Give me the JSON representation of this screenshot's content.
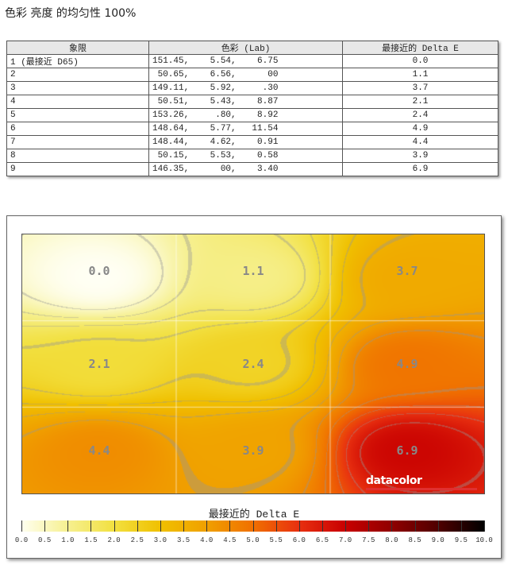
{
  "title": "色彩 亮度 的均匀性 100%",
  "table": {
    "headers": [
      "象限",
      "色彩 (Lab)",
      "最接近的 Delta E"
    ],
    "rows": [
      [
        "1 (最接近 D65)",
        "151.45,    5.54,    6.75",
        "0.0"
      ],
      [
        "2",
        " 50.65,    6.56,      00",
        "1.1"
      ],
      [
        "3",
        "149.11,    5.92,     .30",
        "3.7"
      ],
      [
        "4",
        " 50.51,    5.43,    8.87",
        "2.1"
      ],
      [
        "5",
        "153.26,     .80,    8.92",
        "2.4"
      ],
      [
        "6",
        "148.64,    5.77,   11.54",
        "4.9"
      ],
      [
        "7",
        "148.44,    4.62,    0.91",
        "4.4"
      ],
      [
        "8",
        " 50.15,    5.53,    0.58",
        "3.9"
      ],
      [
        "9",
        "146.35,      00,    3.40",
        "6.9"
      ]
    ]
  },
  "chart_data": {
    "type": "heatmap",
    "grid": [
      [
        0.0,
        1.1,
        3.7
      ],
      [
        2.1,
        2.4,
        4.9
      ],
      [
        4.4,
        3.9,
        6.9
      ]
    ],
    "labels": [
      "0.0",
      "1.1",
      "3.7",
      "2.1",
      "2.4",
      "4.9",
      "4.4",
      "3.9",
      "6.9"
    ],
    "colorbar_title": "最接近的 Delta E",
    "colorbar_range": [
      0,
      10
    ],
    "colorbar_ticks": [
      "0.0",
      "0.5",
      "1.0",
      "1.5",
      "2.0",
      "2.5",
      "3.0",
      "3.5",
      "4.0",
      "4.5",
      "5.0",
      "5.5",
      "6.0",
      "6.5",
      "7.0",
      "7.5",
      "8.0",
      "8.5",
      "9.0",
      "9.5",
      "10.0"
    ]
  },
  "logo": "datacolor"
}
